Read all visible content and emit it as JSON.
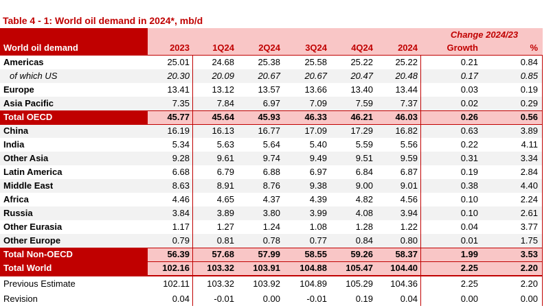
{
  "title": "Table 4 - 1: World oil demand in 2024*, mb/d",
  "header": {
    "row_label": "World oil demand",
    "group": "Change 2024/23",
    "columns": [
      "2023",
      "1Q24",
      "2Q24",
      "3Q24",
      "4Q24",
      "2024",
      "Growth",
      "%"
    ]
  },
  "rows": [
    {
      "label": "Americas",
      "values": [
        "25.01",
        "24.68",
        "25.38",
        "25.58",
        "25.22",
        "25.22",
        "0.21",
        "0.84"
      ]
    },
    {
      "label": "of which US",
      "values": [
        "20.30",
        "20.09",
        "20.67",
        "20.67",
        "20.47",
        "20.48",
        "0.17",
        "0.85"
      ]
    },
    {
      "label": "Europe",
      "values": [
        "13.41",
        "13.12",
        "13.57",
        "13.66",
        "13.40",
        "13.44",
        "0.03",
        "0.19"
      ]
    },
    {
      "label": "Asia Pacific",
      "values": [
        "7.35",
        "7.84",
        "6.97",
        "7.09",
        "7.59",
        "7.37",
        "0.02",
        "0.29"
      ]
    },
    {
      "label": "Total OECD",
      "values": [
        "45.77",
        "45.64",
        "45.93",
        "46.33",
        "46.21",
        "46.03",
        "0.26",
        "0.56"
      ]
    },
    {
      "label": "China",
      "values": [
        "16.19",
        "16.13",
        "16.77",
        "17.09",
        "17.29",
        "16.82",
        "0.63",
        "3.89"
      ]
    },
    {
      "label": "India",
      "values": [
        "5.34",
        "5.63",
        "5.64",
        "5.40",
        "5.59",
        "5.56",
        "0.22",
        "4.11"
      ]
    },
    {
      "label": "Other Asia",
      "values": [
        "9.28",
        "9.61",
        "9.74",
        "9.49",
        "9.51",
        "9.59",
        "0.31",
        "3.34"
      ]
    },
    {
      "label": "Latin America",
      "values": [
        "6.68",
        "6.79",
        "6.88",
        "6.97",
        "6.84",
        "6.87",
        "0.19",
        "2.84"
      ]
    },
    {
      "label": "Middle East",
      "values": [
        "8.63",
        "8.91",
        "8.76",
        "9.38",
        "9.00",
        "9.01",
        "0.38",
        "4.40"
      ]
    },
    {
      "label": "Africa",
      "values": [
        "4.46",
        "4.65",
        "4.37",
        "4.39",
        "4.82",
        "4.56",
        "0.10",
        "2.24"
      ]
    },
    {
      "label": "Russia",
      "values": [
        "3.84",
        "3.89",
        "3.80",
        "3.99",
        "4.08",
        "3.94",
        "0.10",
        "2.61"
      ]
    },
    {
      "label": "Other Eurasia",
      "values": [
        "1.17",
        "1.27",
        "1.24",
        "1.08",
        "1.28",
        "1.22",
        "0.04",
        "3.77"
      ]
    },
    {
      "label": "Other Europe",
      "values": [
        "0.79",
        "0.81",
        "0.78",
        "0.77",
        "0.84",
        "0.80",
        "0.01",
        "1.75"
      ]
    },
    {
      "label": "Total Non-OECD",
      "values": [
        "56.39",
        "57.68",
        "57.99",
        "58.55",
        "59.26",
        "58.37",
        "1.99",
        "3.53"
      ]
    },
    {
      "label": "Total World",
      "values": [
        "102.16",
        "103.32",
        "103.91",
        "104.88",
        "105.47",
        "104.40",
        "2.25",
        "2.20"
      ]
    },
    {
      "label": "Previous Estimate",
      "values": [
        "102.11",
        "103.32",
        "103.92",
        "104.89",
        "105.29",
        "104.36",
        "2.25",
        "2.20"
      ]
    },
    {
      "label": "Revision",
      "values": [
        "0.04",
        "-0.01",
        "0.00",
        "-0.01",
        "0.19",
        "0.04",
        "0.00",
        "0.00"
      ]
    }
  ]
}
